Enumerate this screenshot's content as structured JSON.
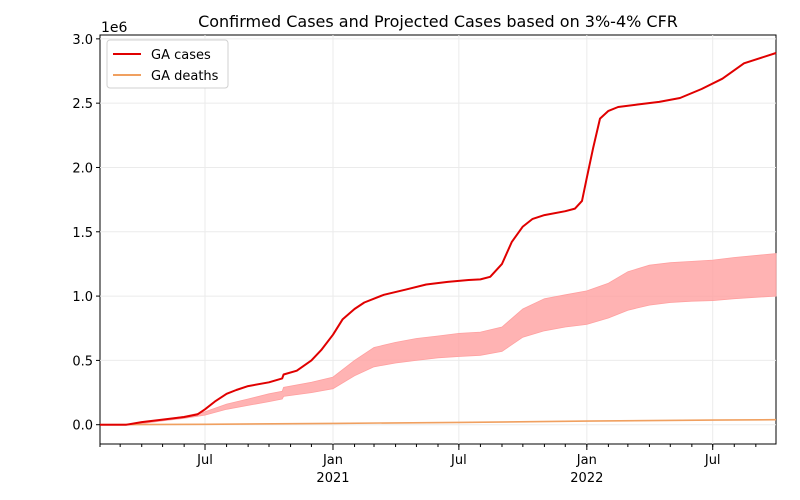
{
  "chart_data": {
    "type": "line",
    "title": "Confirmed Cases and Projected Cases based on 3%-4% CFR",
    "xlabel": "",
    "ylabel": "",
    "y_offset_label": "1e6",
    "ylim": [
      -0.15,
      3.03
    ],
    "xlim": [
      "2020-02-01",
      "2022-09-30"
    ],
    "y_ticks": [
      0.0,
      0.5,
      1.0,
      1.5,
      2.0,
      2.5,
      3.0
    ],
    "y_tick_labels": [
      "0.0",
      "0.5",
      "1.0",
      "1.5",
      "2.0",
      "2.5",
      "3.0"
    ],
    "x_ticks": [
      {
        "date": "2020-07-01",
        "label": "Jul",
        "year": ""
      },
      {
        "date": "2021-01-01",
        "label": "Jan",
        "year": "2021"
      },
      {
        "date": "2021-07-01",
        "label": "Jul",
        "year": ""
      },
      {
        "date": "2022-01-01",
        "label": "Jan",
        "year": "2022"
      },
      {
        "date": "2022-07-01",
        "label": "Jul",
        "year": ""
      }
    ],
    "grid": true,
    "legend_position": "top-left",
    "series": [
      {
        "name": "GA cases",
        "color": "#e00000",
        "points": [
          [
            "2020-02-01",
            0.0
          ],
          [
            "2020-03-10",
            0.0
          ],
          [
            "2020-04-01",
            0.02
          ],
          [
            "2020-05-01",
            0.04
          ],
          [
            "2020-06-01",
            0.06
          ],
          [
            "2020-06-20",
            0.08
          ],
          [
            "2020-07-01",
            0.12
          ],
          [
            "2020-07-15",
            0.18
          ],
          [
            "2020-08-01",
            0.24
          ],
          [
            "2020-08-15",
            0.27
          ],
          [
            "2020-09-01",
            0.3
          ],
          [
            "2020-10-01",
            0.33
          ],
          [
            "2020-10-20",
            0.36
          ],
          [
            "2020-10-22",
            0.39
          ],
          [
            "2020-11-10",
            0.42
          ],
          [
            "2020-12-01",
            0.5
          ],
          [
            "2020-12-15",
            0.58
          ],
          [
            "2021-01-01",
            0.7
          ],
          [
            "2021-01-15",
            0.82
          ],
          [
            "2021-02-01",
            0.9
          ],
          [
            "2021-02-15",
            0.95
          ],
          [
            "2021-03-15",
            1.01
          ],
          [
            "2021-04-15",
            1.05
          ],
          [
            "2021-05-15",
            1.09
          ],
          [
            "2021-06-15",
            1.11
          ],
          [
            "2021-07-15",
            1.125
          ],
          [
            "2021-08-01",
            1.13
          ],
          [
            "2021-08-15",
            1.15
          ],
          [
            "2021-09-01",
            1.25
          ],
          [
            "2021-09-15",
            1.42
          ],
          [
            "2021-10-01",
            1.54
          ],
          [
            "2021-10-15",
            1.6
          ],
          [
            "2021-11-01",
            1.63
          ],
          [
            "2021-12-01",
            1.66
          ],
          [
            "2021-12-15",
            1.68
          ],
          [
            "2021-12-25",
            1.74
          ],
          [
            "2022-01-01",
            1.92
          ],
          [
            "2022-01-10",
            2.15
          ],
          [
            "2022-01-20",
            2.38
          ],
          [
            "2022-02-01",
            2.44
          ],
          [
            "2022-02-15",
            2.47
          ],
          [
            "2022-03-15",
            2.49
          ],
          [
            "2022-04-15",
            2.51
          ],
          [
            "2022-05-15",
            2.54
          ],
          [
            "2022-06-15",
            2.61
          ],
          [
            "2022-07-15",
            2.69
          ],
          [
            "2022-08-15",
            2.81
          ],
          [
            "2022-09-30",
            2.89
          ]
        ]
      },
      {
        "name": "GA deaths",
        "color": "#f0a060",
        "points": [
          [
            "2020-02-01",
            0.0
          ],
          [
            "2020-07-01",
            0.003
          ],
          [
            "2021-01-01",
            0.01
          ],
          [
            "2021-07-01",
            0.018
          ],
          [
            "2022-01-01",
            0.028
          ],
          [
            "2022-07-01",
            0.036
          ],
          [
            "2022-09-30",
            0.039
          ]
        ]
      }
    ],
    "projection_band": {
      "color": "#ffa0a0",
      "upper": [
        [
          "2020-02-01",
          0.0
        ],
        [
          "2020-03-20",
          0.0
        ],
        [
          "2020-05-01",
          0.04
        ],
        [
          "2020-06-01",
          0.065
        ],
        [
          "2020-07-01",
          0.1
        ],
        [
          "2020-08-01",
          0.16
        ],
        [
          "2020-09-01",
          0.2
        ],
        [
          "2020-10-01",
          0.24
        ],
        [
          "2020-10-20",
          0.26
        ],
        [
          "2020-10-22",
          0.29
        ],
        [
          "2020-12-01",
          0.33
        ],
        [
          "2021-01-01",
          0.37
        ],
        [
          "2021-02-01",
          0.5
        ],
        [
          "2021-03-01",
          0.6
        ],
        [
          "2021-04-01",
          0.64
        ],
        [
          "2021-05-01",
          0.67
        ],
        [
          "2021-06-01",
          0.69
        ],
        [
          "2021-07-01",
          0.71
        ],
        [
          "2021-08-01",
          0.72
        ],
        [
          "2021-09-01",
          0.76
        ],
        [
          "2021-10-01",
          0.9
        ],
        [
          "2021-11-01",
          0.98
        ],
        [
          "2021-12-01",
          1.01
        ],
        [
          "2022-01-01",
          1.04
        ],
        [
          "2022-02-01",
          1.1
        ],
        [
          "2022-03-01",
          1.19
        ],
        [
          "2022-04-01",
          1.24
        ],
        [
          "2022-05-01",
          1.26
        ],
        [
          "2022-06-01",
          1.27
        ],
        [
          "2022-07-01",
          1.28
        ],
        [
          "2022-08-01",
          1.3
        ],
        [
          "2022-09-30",
          1.33
        ]
      ],
      "lower": [
        [
          "2020-02-01",
          0.0
        ],
        [
          "2020-03-20",
          0.0
        ],
        [
          "2020-05-01",
          0.03
        ],
        [
          "2020-06-01",
          0.05
        ],
        [
          "2020-07-01",
          0.075
        ],
        [
          "2020-08-01",
          0.12
        ],
        [
          "2020-09-01",
          0.15
        ],
        [
          "2020-10-01",
          0.18
        ],
        [
          "2020-10-20",
          0.2
        ],
        [
          "2020-10-22",
          0.22
        ],
        [
          "2020-12-01",
          0.25
        ],
        [
          "2021-01-01",
          0.28
        ],
        [
          "2021-02-01",
          0.38
        ],
        [
          "2021-03-01",
          0.45
        ],
        [
          "2021-04-01",
          0.48
        ],
        [
          "2021-05-01",
          0.5
        ],
        [
          "2021-06-01",
          0.52
        ],
        [
          "2021-07-01",
          0.53
        ],
        [
          "2021-08-01",
          0.54
        ],
        [
          "2021-09-01",
          0.57
        ],
        [
          "2021-10-01",
          0.68
        ],
        [
          "2021-11-01",
          0.73
        ],
        [
          "2021-12-01",
          0.76
        ],
        [
          "2022-01-01",
          0.78
        ],
        [
          "2022-02-01",
          0.83
        ],
        [
          "2022-03-01",
          0.89
        ],
        [
          "2022-04-01",
          0.93
        ],
        [
          "2022-05-01",
          0.95
        ],
        [
          "2022-06-01",
          0.96
        ],
        [
          "2022-07-01",
          0.965
        ],
        [
          "2022-08-01",
          0.98
        ],
        [
          "2022-09-30",
          1.0
        ]
      ]
    }
  }
}
